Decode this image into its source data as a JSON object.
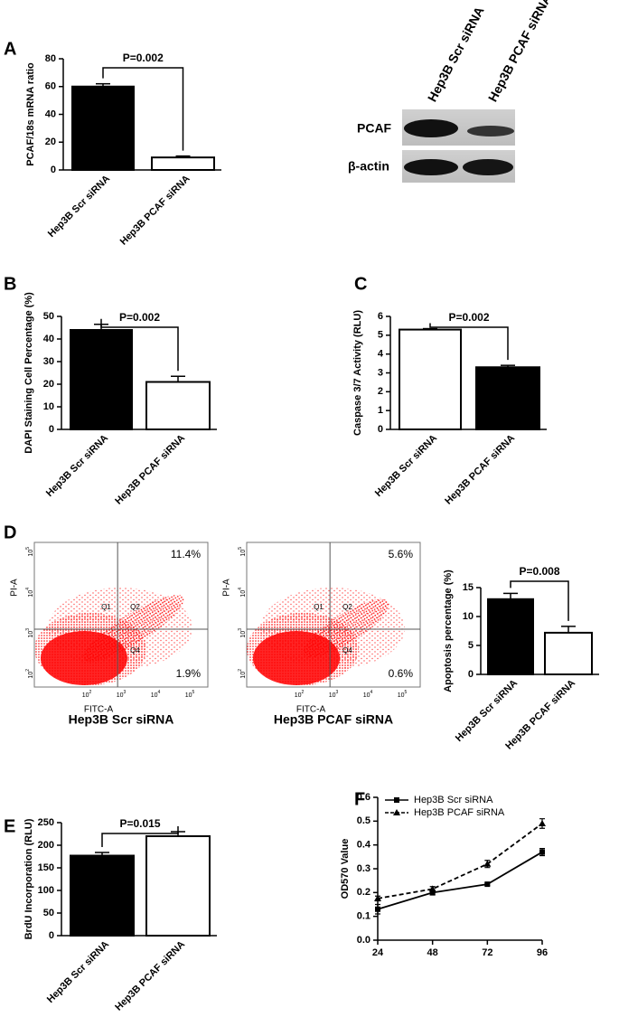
{
  "chart_data": [
    {
      "type": "bar",
      "panel": "A",
      "categories": [
        "Hep3B Scr siRNA",
        "Hep3B PCAF siRNA"
      ],
      "values": [
        60,
        9
      ],
      "errors": [
        2,
        1
      ],
      "colors": [
        "#000000",
        "#ffffff"
      ],
      "ylim": [
        0,
        80
      ],
      "yticks": [
        0,
        20,
        40,
        60,
        80
      ],
      "ylabel": "PCAF/18s mRNA ratio",
      "annotation": "P=0.002"
    },
    {
      "type": "bar",
      "panel": "B",
      "categories": [
        "Hep3B Scr siRNA",
        "Hep3B PCAF siRNA"
      ],
      "values": [
        44,
        21
      ],
      "errors": [
        2.5,
        2.5
      ],
      "colors": [
        "#000000",
        "#ffffff"
      ],
      "ylim": [
        0,
        50
      ],
      "yticks": [
        0,
        10,
        20,
        30,
        40,
        50
      ],
      "ylabel": "DAPI Staining Cell Percentage (%)",
      "annotation": "P=0.002"
    },
    {
      "type": "bar",
      "panel": "C",
      "categories": [
        "Hep3B Scr siRNA",
        "Hep3B PCAF siRNA"
      ],
      "values": [
        5.3,
        3.3
      ],
      "errors": [
        0.05,
        0.1
      ],
      "colors": [
        "#ffffff",
        "#000000"
      ],
      "ylim": [
        0,
        6
      ],
      "yticks": [
        0,
        1,
        2,
        3,
        4,
        5,
        6
      ],
      "ylabel": "Caspase 3/7 Activity (RLU)",
      "annotation": "P=0.002"
    },
    {
      "type": "bar",
      "panel": "D",
      "categories": [
        "Hep3B Scr siRNA",
        "Hep3B PCAF siRNA"
      ],
      "values": [
        13,
        7.2
      ],
      "errors": [
        1,
        1.1
      ],
      "colors": [
        "#000000",
        "#ffffff"
      ],
      "ylim": [
        0,
        15
      ],
      "yticks": [
        0,
        5,
        10,
        15
      ],
      "ylabel": "Apoptosis percentage (%)",
      "annotation": "P=0.008"
    },
    {
      "type": "bar",
      "panel": "E",
      "categories": [
        "Hep3B Scr siRNA",
        "Hep3B PCAF siRNA"
      ],
      "values": [
        177,
        220
      ],
      "errors": [
        7,
        10
      ],
      "colors": [
        "#000000",
        "#ffffff"
      ],
      "ylim": [
        0,
        250
      ],
      "yticks": [
        0,
        50,
        100,
        150,
        200,
        250
      ],
      "ylabel": "BrdU Incorporation (RLU)",
      "annotation": "P=0.015"
    },
    {
      "type": "line",
      "panel": "F",
      "x": [
        24,
        48,
        72,
        96
      ],
      "xlim": [
        24,
        96
      ],
      "xticks": [
        24,
        48,
        72,
        96
      ],
      "ylim": [
        0,
        0.6
      ],
      "yticks": [
        {
          "value": 0,
          "label": "0.0"
        },
        0.1,
        0.2,
        0.3,
        0.4,
        0.5,
        0.6
      ],
      "ylabel": "OD570 Value",
      "legend": "top-left",
      "series": [
        {
          "name": "Hep3B Scr siRNA",
          "color": "#000000",
          "marker": "square",
          "line_style": "solid",
          "values": [
            0.13,
            0.2,
            0.235,
            0.37
          ],
          "errors": [
            0.02,
            0.01,
            0.005,
            0.015
          ]
        },
        {
          "name": "Hep3B PCAF siRNA",
          "color": "#000000",
          "marker": "triangle",
          "line_style": "dashed",
          "values": [
            0.175,
            0.215,
            0.32,
            0.49
          ],
          "errors": [
            0.01,
            0.01,
            0.015,
            0.02
          ]
        }
      ]
    }
  ],
  "blot": {
    "columns": [
      "Hep3B Scr siRNA",
      "Hep3B PCAF siRNA"
    ],
    "rows": [
      "PCAF",
      "β-actin"
    ]
  },
  "flow": {
    "x_label": "FITC-A",
    "y_label": "PI-A",
    "tick_base": "10",
    "tick_exponents": [
      "2",
      "3",
      "4",
      "5"
    ],
    "quadrants": [
      "Q1",
      "Q2",
      "Q4"
    ],
    "plots": [
      {
        "title": "Hep3B Scr siRNA",
        "upper_right": "11.4%",
        "lower_right": "1.9%"
      },
      {
        "title": "Hep3B PCAF siRNA",
        "upper_right": "5.6%",
        "lower_right": "0.6%"
      }
    ]
  }
}
